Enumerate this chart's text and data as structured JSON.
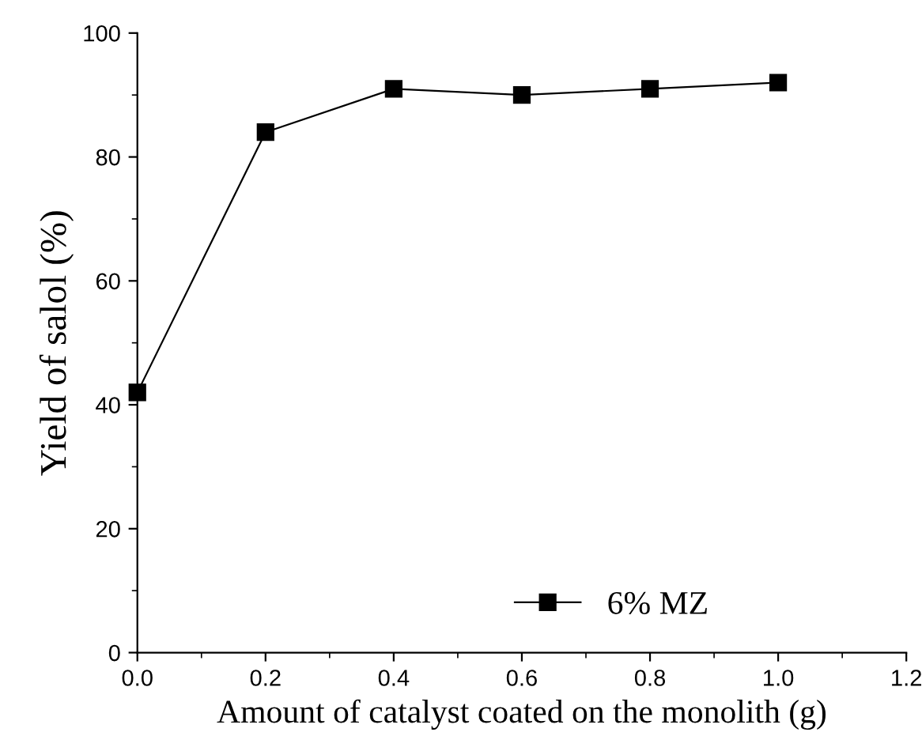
{
  "chart_data": {
    "type": "line",
    "xlabel": "Amount of catalyst coated on the monolith (g)",
    "ylabel": "Yield of salol (%)",
    "x": [
      0.0,
      0.2,
      0.4,
      0.6,
      0.8,
      1.0
    ],
    "series": [
      {
        "name": "6% MZ",
        "color": "#000000",
        "values": [
          42,
          84,
          91,
          90,
          91,
          92
        ]
      }
    ],
    "xlim": [
      0.0,
      1.2
    ],
    "xticks": [
      {
        "value": 0.0,
        "label": "0.0"
      },
      {
        "value": 0.2,
        "label": "0.2"
      },
      {
        "value": 0.4,
        "label": "0.4"
      },
      {
        "value": 0.6,
        "label": "0.6"
      },
      {
        "value": 0.8,
        "label": "0.8"
      },
      {
        "value": 1.0,
        "label": "1.0"
      },
      {
        "value": 1.2,
        "label": "1.2"
      }
    ],
    "ylim": [
      0,
      100
    ],
    "yticks": [
      0,
      20,
      40,
      60,
      80,
      100
    ],
    "marker": "square",
    "line_style": "solid",
    "legend": "bottom right",
    "grid": false
  }
}
